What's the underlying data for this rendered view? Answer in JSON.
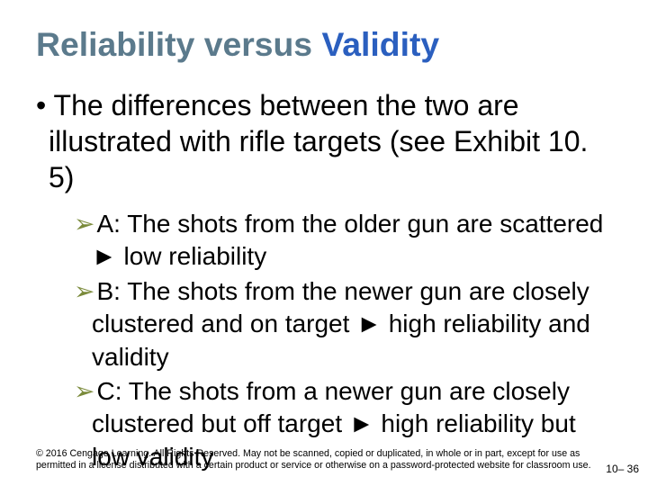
{
  "title": {
    "word1": "Reliability",
    "word2": "versus",
    "word3": "Validity",
    "color1": "#5b7a8c",
    "color2": "#5b7a8c",
    "color3": "#2b5fbf",
    "fontsize_pt": 28
  },
  "main_bullet": {
    "text": "The differences between the two are illustrated with rifle targets (see Exhibit 10. 5)",
    "fontsize_pt": 24
  },
  "sub": {
    "bullet_glyph": "➢",
    "arrow_glyph": "►",
    "bullet_color": "#7a8a3a",
    "fontsize_pt": 21,
    "items": [
      {
        "pre": "A: The shots from the older gun are scattered ",
        "post": " low reliability"
      },
      {
        "pre": "B: The shots from the newer gun are closely clustered and on target ",
        "post": " high reliability and validity"
      },
      {
        "pre": "C: The shots from a newer gun are closely clustered but off target ",
        "post": " high reliability but low validity"
      }
    ]
  },
  "footer": {
    "copyright": "© 2016 Cengage Learning. All Rights Reserved. May not be scanned, copied or duplicated, in whole or in part, except for use as permitted in a license distributed with a certain product or service or otherwise on a password-protected website for classroom use.",
    "fontsize_pt": 8,
    "page": "10– 36",
    "page_fontsize_pt": 9
  },
  "background_color": "#ffffff"
}
